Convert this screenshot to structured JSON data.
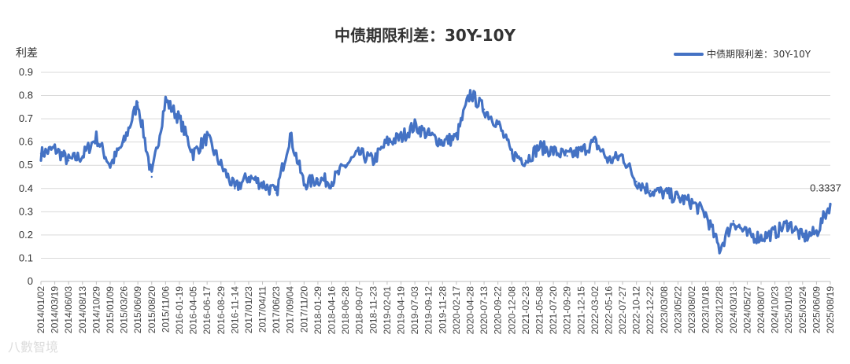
{
  "chart_data": {
    "type": "line",
    "title": "中债期限利差：30Y-10Y",
    "ylabel": "利差",
    "xlabel": "",
    "ylim": [
      0,
      0.9
    ],
    "yticks": [
      "0",
      "0.1",
      "0.2",
      "0.3",
      "0.4",
      "0.5",
      "0.6",
      "0.7",
      "0.8",
      "0.9"
    ],
    "grid": true,
    "legend_position": "top-right",
    "colors": {
      "series": "#4472c4",
      "grid": "#d9d9d9",
      "axis": "#bfbfbf"
    },
    "annotation": {
      "text": "0.3337"
    },
    "watermark": "八數智境",
    "x": [
      "2014/01/02",
      "2014/03/19",
      "2014/06/03",
      "2014/08/13",
      "2014/10/29",
      "2015/01/09",
      "2015/03/26",
      "2015/06/09",
      "2015/08/20",
      "2015/11/06",
      "2016-01-19",
      "2016-04-05",
      "2016-06-17",
      "2016-08-29",
      "2016-11-14",
      "2017/01/23",
      "2017/04/11",
      "2017/06/23",
      "2017/09/04",
      "2017/11/20",
      "2018-01-29",
      "2018-04-16",
      "2018-06-28",
      "2018-09-07",
      "2018-11-23",
      "2019-02-01",
      "2019-04-19",
      "2019-07-03",
      "2019-09-12",
      "2019-11-28",
      "2020-02-17",
      "2020-04-28",
      "2020-07-13",
      "2020-09-22",
      "2020-12-08",
      "2021-02-23",
      "2021-05-08",
      "2021-07-20",
      "2021-09-29",
      "2021-12-15",
      "2022-03-02",
      "2022-05-16",
      "2022-07-27",
      "2022-10-12",
      "2022-12-22",
      "2023/03/08",
      "2023/05/22",
      "2023/08/02",
      "2023/10/18",
      "2023/12/28",
      "2024/03/13",
      "2024/05/27",
      "2024/08/07",
      "2024/10/23",
      "2025/01/03",
      "2025/03/24",
      "2025/06/09",
      "2025/08/19"
    ],
    "series": [
      {
        "name": "中债期限利差：30Y-10Y",
        "values": [
          0.55,
          0.57,
          0.52,
          0.54,
          0.62,
          0.5,
          0.6,
          0.77,
          0.45,
          0.78,
          0.7,
          0.55,
          0.62,
          0.5,
          0.4,
          0.45,
          0.42,
          0.38,
          0.63,
          0.42,
          0.44,
          0.43,
          0.5,
          0.55,
          0.52,
          0.6,
          0.62,
          0.67,
          0.63,
          0.6,
          0.62,
          0.81,
          0.74,
          0.68,
          0.55,
          0.52,
          0.58,
          0.56,
          0.54,
          0.56,
          0.6,
          0.52,
          0.54,
          0.43,
          0.39,
          0.38,
          0.36,
          0.34,
          0.29,
          0.14,
          0.26,
          0.2,
          0.19,
          0.21,
          0.25,
          0.19,
          0.21,
          0.3337
        ]
      }
    ]
  }
}
